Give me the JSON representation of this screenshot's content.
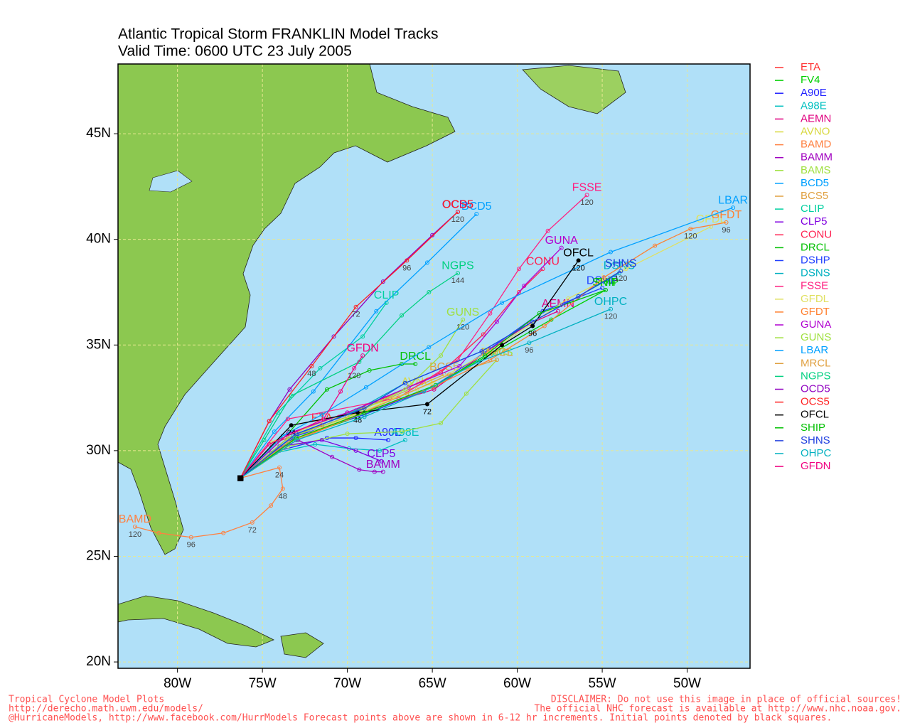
{
  "chart_data": {
    "type": "line",
    "title": "Atlantic Tropical Storm FRANKLIN Model Tracks",
    "subtitle": "Valid Time: 0600 UTC 23 July 2005",
    "xlim": [
      -83.5,
      -46.3
    ],
    "ylim": [
      19.7,
      48.3
    ],
    "xticks": [
      {
        "value": -80,
        "label": "80W"
      },
      {
        "value": -75,
        "label": "75W"
      },
      {
        "value": -70,
        "label": "70W"
      },
      {
        "value": -65,
        "label": "65W"
      },
      {
        "value": -60,
        "label": "60W"
      },
      {
        "value": -55,
        "label": "55W"
      },
      {
        "value": -50,
        "label": "50W"
      }
    ],
    "yticks": [
      {
        "value": 20,
        "label": "20N"
      },
      {
        "value": 25,
        "label": "25N"
      },
      {
        "value": 30,
        "label": "30N"
      },
      {
        "value": 35,
        "label": "35N"
      },
      {
        "value": 40,
        "label": "40N"
      },
      {
        "value": 45,
        "label": "45N"
      }
    ],
    "grid": true,
    "legend": "right",
    "series": [
      {
        "name": "ETA",
        "color": "#ff3030",
        "x": [
          -76.3,
          -74.2,
          -71.5
        ],
        "y": [
          28.7,
          30.4,
          31.2
        ]
      },
      {
        "name": "FV4",
        "color": "#00d000",
        "x": [
          -76.3,
          -73.3,
          -69.4,
          -65.0,
          -61.5,
          -58.0,
          -54.8
        ],
        "y": [
          28.7,
          30.5,
          31.6,
          33.0,
          34.6,
          36.2,
          37.6
        ]
      },
      {
        "name": "A90E",
        "color": "#2020ff",
        "x": [
          -76.3,
          -74.0,
          -71.2,
          -69.5,
          -67.6
        ],
        "y": [
          28.7,
          30.0,
          30.6,
          30.6,
          30.5
        ]
      },
      {
        "name": "A98E",
        "color": "#00c0c0",
        "x": [
          -76.3,
          -74.2,
          -71.9,
          -69.9,
          -68.1,
          -66.6
        ],
        "y": [
          28.7,
          29.9,
          30.3,
          30.1,
          30.0,
          30.5
        ]
      },
      {
        "name": "AEMN",
        "color": "#e0007f",
        "x": [
          -76.3,
          -73.5,
          -70.0,
          -64.9,
          -61.6,
          -59.3,
          -57.6
        ],
        "y": [
          28.7,
          30.6,
          31.6,
          32.9,
          34.8,
          36.0,
          36.6
        ]
      },
      {
        "name": "AVNO",
        "color": "#d8d840",
        "x": [
          -76.3,
          -74.5,
          -71.0,
          -68.0,
          -65.9
        ],
        "y": [
          28.7,
          30.4,
          31.5,
          32.3,
          32.9
        ]
      },
      {
        "name": "BAMD",
        "color": "#ff8040",
        "x": [
          -76.3,
          -74.0,
          -73.8,
          -74.5,
          -75.6,
          -77.3,
          -79.2,
          -81.1,
          -82.5
        ],
        "y": [
          28.7,
          29.2,
          28.2,
          27.4,
          26.6,
          26.1,
          25.9,
          26.1,
          26.4
        ],
        "point_labels": [
          null,
          "24",
          "48",
          null,
          "72",
          null,
          "96",
          null,
          "120"
        ]
      },
      {
        "name": "BAMM",
        "color": "#a000c0",
        "x": [
          -76.3,
          -74.5,
          -72.9,
          -70.9,
          -69.3,
          -68.4,
          -67.9
        ],
        "y": [
          28.7,
          29.9,
          30.5,
          29.7,
          29.1,
          29.0,
          29.0
        ]
      },
      {
        "name": "BAMS",
        "color": "#a0e040",
        "x": [
          -76.3,
          -73.5,
          -70.0,
          -66.8,
          -64.5,
          -63.0,
          -61.2
        ],
        "y": [
          28.7,
          30.2,
          30.8,
          30.9,
          31.3,
          32.7,
          34.3
        ]
      },
      {
        "name": "BCD5",
        "color": "#00a0ff",
        "x": [
          -76.3,
          -74.3,
          -72.0,
          -68.3,
          -65.3,
          -62.4
        ],
        "y": [
          28.7,
          30.9,
          32.8,
          36.6,
          38.9,
          41.2
        ]
      },
      {
        "name": "BCS5",
        "color": "#e0a040",
        "x": [
          -76.3,
          -73.5,
          -70.5,
          -67.5,
          -64.3
        ],
        "y": [
          28.7,
          30.5,
          31.6,
          32.5,
          33.6
        ]
      },
      {
        "name": "CLIP",
        "color": "#00d0a0",
        "x": [
          -76.3,
          -74.1,
          -71.6,
          -69.1,
          -67.7
        ],
        "y": [
          28.7,
          31.8,
          33.9,
          35.4,
          37.0
        ]
      },
      {
        "name": "CLP5",
        "color": "#8000e0",
        "x": [
          -76.3,
          -74.0,
          -71.5,
          -69.5,
          -68.0
        ],
        "y": [
          28.7,
          30.2,
          30.5,
          30.0,
          29.5
        ]
      },
      {
        "name": "CONU",
        "color": "#ff2050",
        "x": [
          -76.3,
          -73.5,
          -70.0,
          -67.8,
          -64.5,
          -62.0,
          -59.9,
          -58.5
        ],
        "y": [
          28.7,
          30.8,
          31.8,
          32.5,
          33.7,
          35.5,
          37.5,
          38.6
        ]
      },
      {
        "name": "DRCL",
        "color": "#00c000",
        "x": [
          -76.3,
          -73.5,
          -71.2,
          -68.7,
          -66.8,
          -66.0
        ],
        "y": [
          28.7,
          30.8,
          32.9,
          33.8,
          34.1,
          34.1
        ]
      },
      {
        "name": "DSHP",
        "color": "#2040ff",
        "x": [
          -76.3,
          -73.0,
          -69.0,
          -65.0,
          -62.0,
          -58.5,
          -55.0
        ],
        "y": [
          28.7,
          30.7,
          31.7,
          33.0,
          34.6,
          36.6,
          37.7
        ]
      },
      {
        "name": "DSNS",
        "color": "#00b0c0",
        "x": [
          -76.3,
          -73.2,
          -69.5,
          -66.6,
          -62.1,
          -59.1,
          -56.4,
          -54.0
        ],
        "y": [
          28.7,
          30.7,
          31.9,
          33.2,
          34.7,
          36.1,
          37.3,
          38.4
        ]
      },
      {
        "name": "FSSE",
        "color": "#ff2080",
        "x": [
          -76.3,
          -73.5,
          -67.0,
          -63.5,
          -61.6,
          -59.9,
          -58.2,
          -55.9
        ],
        "y": [
          28.7,
          31.5,
          32.5,
          34.3,
          36.5,
          38.6,
          40.4,
          42.1
        ],
        "point_labels": [
          null,
          null,
          null,
          null,
          null,
          null,
          null,
          "120"
        ]
      },
      {
        "name": "GFDL",
        "color": "#e0e060",
        "x": [
          -76.3,
          -73.0,
          -69.0,
          -65.0,
          -61.0,
          -57.0,
          -53.6,
          -48.6
        ],
        "y": [
          28.7,
          30.6,
          31.9,
          33.2,
          35.0,
          37.2,
          38.6,
          40.6
        ]
      },
      {
        "name": "GFDT",
        "color": "#ff8030",
        "x": [
          -76.3,
          -73.0,
          -69.0,
          -65.0,
          -61.6,
          -58.4,
          -54.9,
          -51.9,
          -49.8,
          -47.7
        ],
        "y": [
          28.7,
          30.5,
          31.8,
          33.0,
          34.3,
          35.9,
          38.2,
          39.7,
          40.5,
          40.8
        ],
        "point_labels": [
          null,
          null,
          null,
          null,
          null,
          null,
          null,
          null,
          "120",
          "96"
        ]
      },
      {
        "name": "GUNA",
        "color": "#b000d0",
        "x": [
          -76.3,
          -73.5,
          -70.0,
          -66.4,
          -63.4,
          -61.2,
          -59.6,
          -57.4
        ],
        "y": [
          28.7,
          30.8,
          31.8,
          33.0,
          34.0,
          36.1,
          37.8,
          39.6
        ]
      },
      {
        "name": "GUNS",
        "color": "#a0e040",
        "x": [
          -76.3,
          -73.5,
          -70.0,
          -66.6,
          -64.5,
          -63.2
        ],
        "y": [
          28.7,
          30.6,
          31.6,
          32.9,
          34.5,
          36.2
        ],
        "point_labels": [
          null,
          null,
          null,
          null,
          null,
          "120"
        ]
      },
      {
        "name": "LBAR",
        "color": "#00a0ff",
        "x": [
          -76.3,
          -73.8,
          -71.5,
          -68.9,
          -65.2,
          -60.9,
          -54.5,
          -47.3
        ],
        "y": [
          28.7,
          30.7,
          31.7,
          33.0,
          34.9,
          37.0,
          39.4,
          41.5
        ]
      },
      {
        "name": "MRCL",
        "color": "#e0a040",
        "x": [
          -76.3,
          -73.5,
          -70.0,
          -66.5,
          -64.0,
          -61.2
        ],
        "y": [
          28.7,
          30.4,
          31.5,
          32.7,
          33.6,
          34.3
        ]
      },
      {
        "name": "NGPS",
        "color": "#00d080",
        "x": [
          -76.3,
          -74.9,
          -73.3,
          -69.3,
          -66.8,
          -65.2,
          -63.5
        ],
        "y": [
          28.7,
          30.5,
          32.6,
          34.2,
          36.4,
          37.5,
          38.4
        ],
        "point_labels": [
          null,
          null,
          null,
          null,
          null,
          null,
          "144"
        ]
      },
      {
        "name": "OCD5",
        "color": "#9000c0",
        "x": [
          -76.3,
          -74.6,
          -73.4,
          -70.8,
          -67.9,
          -65.0,
          -63.5
        ],
        "y": [
          28.7,
          31.4,
          32.9,
          35.4,
          38.0,
          40.2,
          41.3
        ]
      },
      {
        "name": "OCS5",
        "color": "#ff2020",
        "x": [
          -76.3,
          -74.6,
          -72.1,
          -69.5,
          -66.5,
          -63.5
        ],
        "y": [
          28.7,
          31.4,
          34.0,
          36.8,
          39.0,
          41.3
        ],
        "point_labels": [
          null,
          null,
          "48",
          "72",
          "96",
          "120"
        ]
      },
      {
        "name": "OFCL",
        "color": "#000000",
        "x": [
          -76.3,
          -73.3,
          -69.4,
          -65.3,
          -60.9,
          -59.1,
          -56.4
        ],
        "y": [
          28.7,
          31.2,
          31.8,
          32.2,
          35.0,
          35.9,
          39.0
        ],
        "point_labels": [
          null,
          "24",
          "48",
          "72",
          null,
          "96",
          "120"
        ]
      },
      {
        "name": "SHIP",
        "color": "#00c000",
        "x": [
          -76.3,
          -73.0,
          -69.0,
          -64.8,
          -61.9,
          -58.7,
          -54.8
        ],
        "y": [
          28.7,
          30.6,
          31.8,
          33.1,
          34.5,
          36.5,
          37.6
        ]
      },
      {
        "name": "SHNS",
        "color": "#2040e0",
        "x": [
          -76.3,
          -73.0,
          -69.0,
          -66.6,
          -62.1,
          -59.1,
          -56.4,
          -53.9
        ],
        "y": [
          28.7,
          30.8,
          32.0,
          33.2,
          34.7,
          36.1,
          37.3,
          38.5
        ],
        "point_labels": [
          null,
          null,
          null,
          null,
          null,
          null,
          null,
          "120"
        ]
      },
      {
        "name": "OHPC",
        "color": "#00b0c0",
        "x": [
          -76.3,
          -73.0,
          -69.0,
          -65.5,
          -62.3,
          -59.3,
          -54.5
        ],
        "y": [
          28.7,
          30.5,
          31.6,
          32.8,
          34.2,
          35.1,
          36.7
        ],
        "point_labels": [
          null,
          null,
          null,
          null,
          null,
          "96",
          "120"
        ]
      },
      {
        "name": "GFDN",
        "color": "#f00080",
        "x": [
          -76.3,
          -74.6,
          -71.4,
          -70.4,
          -69.6,
          -69.1
        ],
        "y": [
          28.7,
          30.3,
          31.5,
          32.8,
          33.9,
          34.5
        ],
        "point_labels": [
          null,
          null,
          null,
          null,
          "120",
          null
        ]
      }
    ]
  },
  "footer": {
    "left": [
      "Tropical Cyclone Model Plots",
      "http://derecho.math.uwm.edu/models/",
      "@HurricaneModels, http://www.facebook.com/HurrModels  Forecast points above are shown in 6-12 hr increments. Initial points denoted by black squares."
    ],
    "right": [
      "DISCLAIMER: Do not use this image in place of official sources!",
      "The official NHC forecast is available at http://www.nhc.noaa.gov."
    ]
  }
}
